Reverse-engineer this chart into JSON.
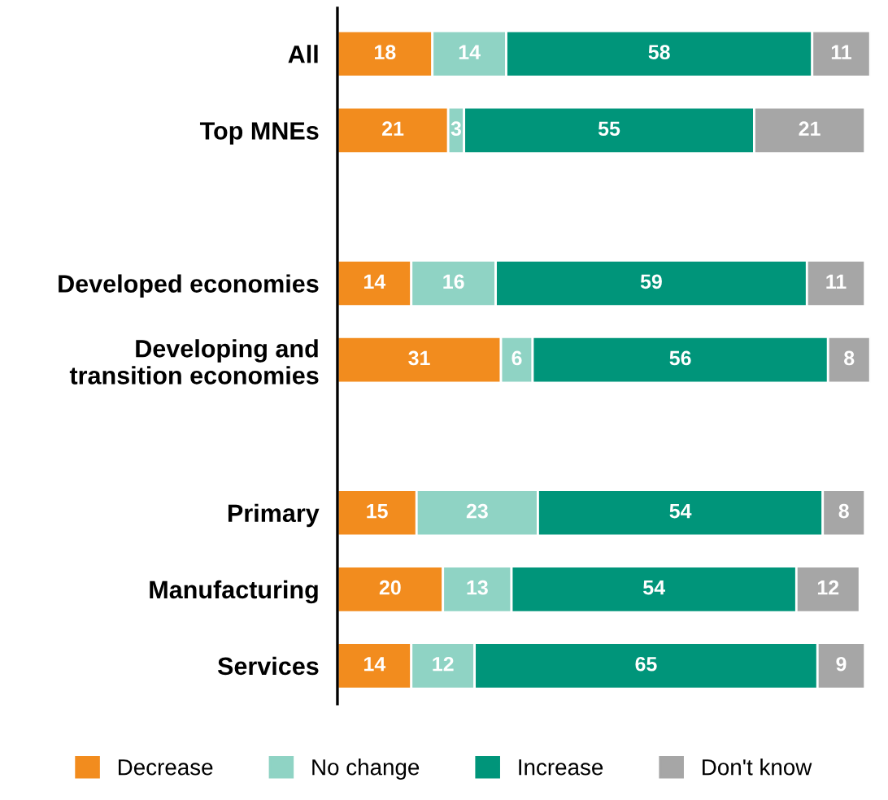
{
  "chart_data": {
    "type": "bar",
    "orientation": "horizontal",
    "stacked": true,
    "data_labels": true,
    "legend": "bottom",
    "grid": false,
    "categories": [
      "All",
      "Top MNEs",
      null,
      "Developed economies",
      "Developing and\ntransition economies",
      null,
      "Primary",
      "Manufacturing",
      "Services"
    ],
    "series": [
      {
        "name": "Decrease",
        "color": "#f28c1e",
        "values": [
          18,
          21,
          null,
          14,
          31,
          null,
          15,
          20,
          14
        ]
      },
      {
        "name": "No change",
        "color": "#8fd3c4",
        "values": [
          14,
          3,
          null,
          16,
          6,
          null,
          23,
          13,
          12
        ]
      },
      {
        "name": "Increase",
        "color": "#00957a",
        "values": [
          58,
          55,
          null,
          59,
          56,
          null,
          54,
          54,
          65
        ]
      },
      {
        "name": "Don't know",
        "color": "#a6a6a6",
        "values": [
          11,
          21,
          null,
          11,
          8,
          null,
          8,
          12,
          9
        ]
      }
    ]
  }
}
